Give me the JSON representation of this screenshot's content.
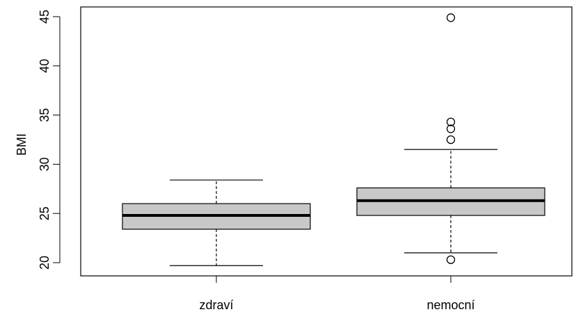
{
  "chart_data": {
    "type": "boxplot",
    "title": "",
    "xlabel": "",
    "ylabel": "BMI",
    "ylim": [
      19.2,
      46.0
    ],
    "yticks": [
      20,
      25,
      30,
      35,
      40,
      45
    ],
    "ytick_labels": [
      "20",
      "25",
      "30",
      "35",
      "40",
      "45"
    ],
    "categories": [
      "zdraví",
      "nemocní"
    ],
    "boxes": [
      {
        "category": "zdraví",
        "whisker_low": 19.7,
        "q1": 23.4,
        "median": 24.8,
        "q3": 26.0,
        "whisker_high": 28.4,
        "outliers": []
      },
      {
        "category": "nemocní",
        "whisker_low": 21.0,
        "q1": 24.8,
        "median": 26.3,
        "q3": 27.6,
        "whisker_high": 31.5,
        "outliers": [
          20.3,
          32.5,
          33.6,
          34.3,
          44.9
        ]
      }
    ],
    "box_fill": "#c8c8c8",
    "grid": false,
    "legend": "none"
  }
}
